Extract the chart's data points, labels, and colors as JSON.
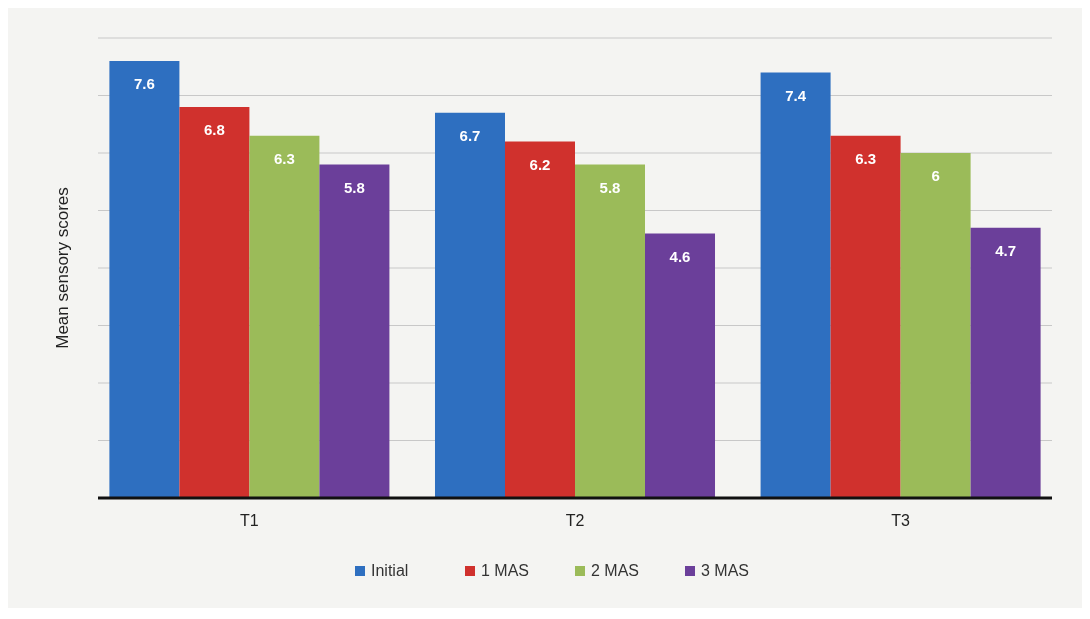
{
  "chart_data": {
    "type": "bar",
    "ylabel": "Mean sensory scores",
    "categories": [
      "T1",
      "T2",
      "T3"
    ],
    "series": [
      {
        "name": "Initial",
        "color": "#2e6fc0",
        "values": [
          7.6,
          6.7,
          7.4
        ]
      },
      {
        "name": "1 MAS",
        "color": "#d0312d",
        "values": [
          6.8,
          6.2,
          6.3
        ]
      },
      {
        "name": "2 MAS",
        "color": "#9bbb59",
        "values": [
          6.3,
          5.8,
          6
        ]
      },
      {
        "name": "3 MAS",
        "color": "#6b3f9a",
        "values": [
          5.8,
          4.6,
          4.7
        ]
      }
    ],
    "ylim": [
      0,
      8
    ],
    "yticks": [
      {
        "value": 0,
        "label": null
      },
      {
        "value": 1,
        "label": null
      },
      {
        "value": 2,
        "label": null
      },
      {
        "value": 3,
        "label": null
      },
      {
        "value": 4,
        "label": null
      },
      {
        "value": 5,
        "label": null
      },
      {
        "value": 6,
        "label": null
      },
      {
        "value": 7,
        "label": null
      },
      {
        "value": 8,
        "label": null
      }
    ],
    "tick_labels": "x",
    "grid": "y",
    "data_labels": true,
    "legend": "bottom"
  }
}
